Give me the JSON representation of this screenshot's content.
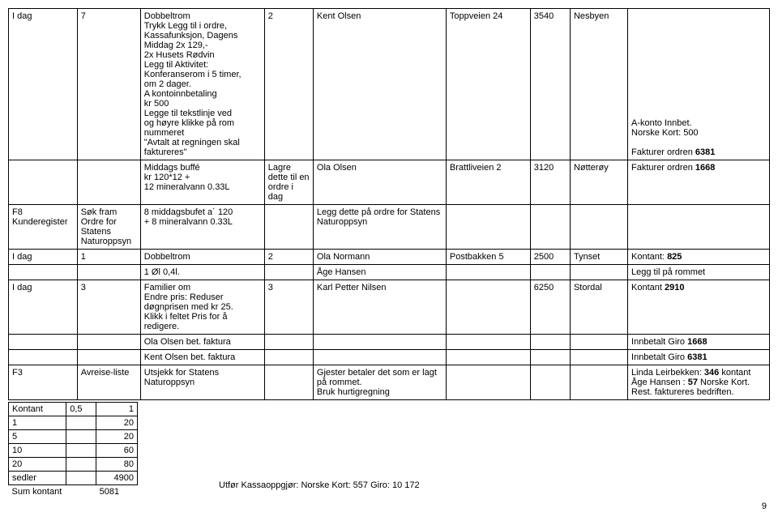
{
  "main": {
    "r1": {
      "c1": "I dag",
      "c2": "7",
      "c3": "Dobbeltrom\nTrykk Legg til i ordre,\nKassafunksjon, Dagens\nMiddag  2x 129,-\n2x Husets Rødvin\nLegg til Aktivitet:\nKonferanserom i 5 timer,\nom 2 dager.\nA kontoinnbetaling\nkr 500\nLegge til tekstlinje ved\nog høyre klikke på rom\nnummeret\n\"Avtalt at regningen skal\nfaktureres\"",
      "c4": "2",
      "c5": "Kent Olsen",
      "c6": "Toppveien 24",
      "c7": "3540",
      "c8": "Nesbyen",
      "c9": "A-konto Innbet.\nNorske Kort: 500\n\nFakturer ordren 6381"
    },
    "r2": {
      "c1": "",
      "c2": "",
      "c3": "Middags buffé\nkr 120*12 +\n12 mineralvann 0.33L",
      "c4": "Lagre dette til en ordre i dag",
      "c5": "Ola Olsen",
      "c6": "Brattliveien 2",
      "c7": "3120",
      "c8": "Nøtterøy",
      "c9": "Fakturer ordren 1668"
    },
    "r3": {
      "c1": "F8\nKunderegister",
      "c2": "Søk fram Ordre for Statens Naturoppsyn",
      "c3": "8  middagsbufet a´ 120\n+ 8  mineralvann 0.33L",
      "c4": "",
      "c5": "Legg dette på ordre for Statens Naturoppsyn",
      "c6": "",
      "c7": "",
      "c8": "",
      "c9": ""
    },
    "r4": {
      "c1": "I dag",
      "c2": "1",
      "c3": "Dobbeltrom",
      "c4": "2",
      "c5": "Ola Normann",
      "c6": "Postbakken 5",
      "c7": "2500",
      "c8": "Tynset",
      "c9": "Kontant: 825"
    },
    "r5": {
      "c1": "",
      "c2": "",
      "c3": "1 Øl 0,4l.",
      "c4": "",
      "c5": "Åge Hansen",
      "c6": "",
      "c7": "",
      "c8": "",
      "c9": "Legg til på rommet"
    },
    "r6": {
      "c1": "I dag",
      "c2": "3",
      "c3": "Familier om\nEndre pris: Reduser\ndøgnprisen med kr 25.\nKlikk i feltet Pris for å\nredigere.",
      "c4": "3",
      "c5": "Karl Petter Nilsen",
      "c6": "",
      "c7": "6250",
      "c8": "Stordal",
      "c9": "Kontant  2910"
    },
    "r7": {
      "c1": "",
      "c2": "",
      "c3": "Ola Olsen bet. faktura",
      "c4": "",
      "c5": "",
      "c6": "",
      "c7": "",
      "c8": "",
      "c9": "Innbetalt Giro 1668"
    },
    "r8": {
      "c1": "",
      "c2": "",
      "c3": "Kent Olsen bet. faktura",
      "c4": "",
      "c5": "",
      "c6": "",
      "c7": "",
      "c8": "",
      "c9": "Innbetalt Giro 6381"
    },
    "r9": {
      "c1": "F3",
      "c2": "Avreise-liste",
      "c3": "Utsjekk for Statens Naturoppsyn",
      "c4": "",
      "c5": "Gjester betaler det som er lagt på rommet.\nBruk hurtigregning",
      "c6": "",
      "c7": "",
      "c8": "",
      "c9": "Linda Leirbekken: 346 kontant\nÅge Hansen : 57 Norske Kort.\nRest. faktureres bedriften."
    }
  },
  "smallTable": {
    "r1": {
      "a": "Kontant",
      "b": "0,5",
      "c": "1"
    },
    "r2": {
      "a": "1",
      "b": "",
      "c": "20"
    },
    "r3": {
      "a": "5",
      "b": "",
      "c": "20"
    },
    "r4": {
      "a": "10",
      "b": "",
      "c": "60"
    },
    "r5": {
      "a": "20",
      "b": "",
      "c": "80"
    },
    "r6": {
      "a": "sedler",
      "b": "",
      "c": "4900"
    },
    "r7": {
      "a": "Sum kontant",
      "b": "",
      "c": "5081"
    }
  },
  "utfor": "Utfør Kassaoppgjør:        Norske Kort: 557                        Giro: 10 172",
  "pageNum": "9",
  "colWidths": [
    "70px",
    "60px",
    "140px",
    "55px",
    "150px",
    "95px",
    "45px",
    "65px",
    "160px"
  ],
  "bold": {
    "b6381": "6381",
    "b1668": "1668",
    "b825": "825",
    "b2910": "2910",
    "b346": "346",
    "b57": "57"
  }
}
